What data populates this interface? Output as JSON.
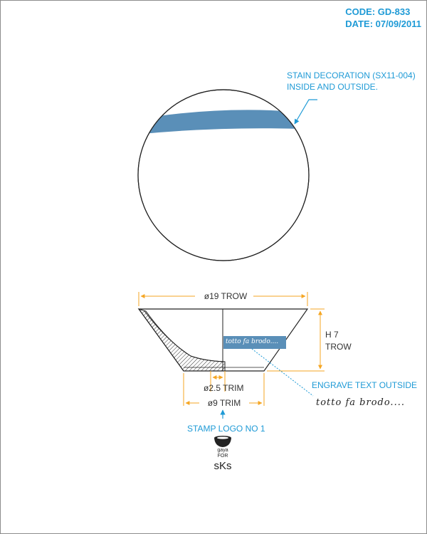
{
  "header": {
    "code": "CODE: GD-833",
    "date": "DATE: 07/09/2011"
  },
  "colors": {
    "accent": "#1e9ad6",
    "stain": "#5a8fb8",
    "dimension": "#f5a623",
    "line": "#222222"
  },
  "notes": {
    "stain_line1": "STAIN DECORATION (SX11-004)",
    "stain_line2": "INSIDE AND OUTSIDE.",
    "engrave": "ENGRAVE TEXT OUTSIDE",
    "engrave_sample": "totto fa brodo....",
    "band_text": "totto fa brodo....",
    "stamp": "STAMP LOGO NO 1"
  },
  "dimensions": {
    "top_diameter": "ø19 TROW",
    "height_line1": "H 7",
    "height_line2": "TROW",
    "inner_trim": "ø2.5 TRIM",
    "base_trim": "ø9 TRIM"
  },
  "logo": {
    "line1": "gaya",
    "line2": "FOR",
    "brand": "sKs",
    "icon": "bowl-logo-icon"
  }
}
